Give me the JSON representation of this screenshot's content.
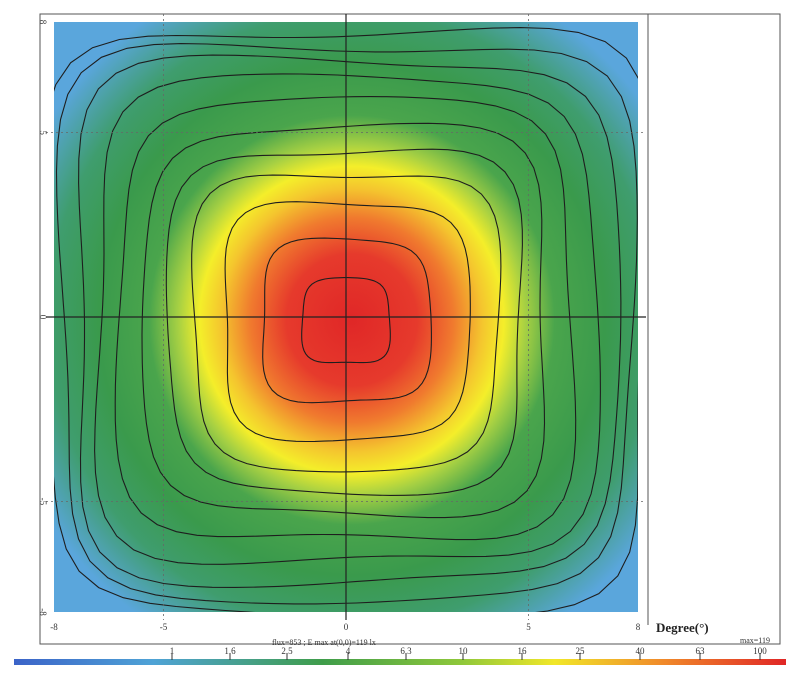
{
  "chart_data": {
    "type": "heatmap",
    "title": "",
    "xlabel": "Degree(°)",
    "ylabel": "",
    "x_range": [
      -8,
      8
    ],
    "y_range": [
      -8,
      8
    ],
    "x_ticks": [
      "-8",
      "-5",
      "0",
      "5",
      "8"
    ],
    "y_ticks": [
      "8",
      "5",
      "0",
      "-5",
      "-8"
    ],
    "grid": true,
    "peak_center": [
      0,
      0
    ],
    "max_value": 119,
    "contour_levels": [
      1,
      1.6,
      2.5,
      4,
      6.3,
      10,
      16,
      25,
      40,
      63,
      100
    ],
    "colorbar_labels": [
      "1",
      "1.6",
      "2.5",
      "4",
      "6.3",
      "10",
      "16",
      "25",
      "40",
      "63",
      "100"
    ],
    "colorbar_max_label": "max=119",
    "footer_note": "flux=853 ; E max at(0,0)=119 lx",
    "colors": {
      "low": "#5aa6dc",
      "green": "#3f9a46",
      "yellow": "#f4ee2a",
      "orange": "#f39a2a",
      "red": "#e22b2b"
    }
  }
}
